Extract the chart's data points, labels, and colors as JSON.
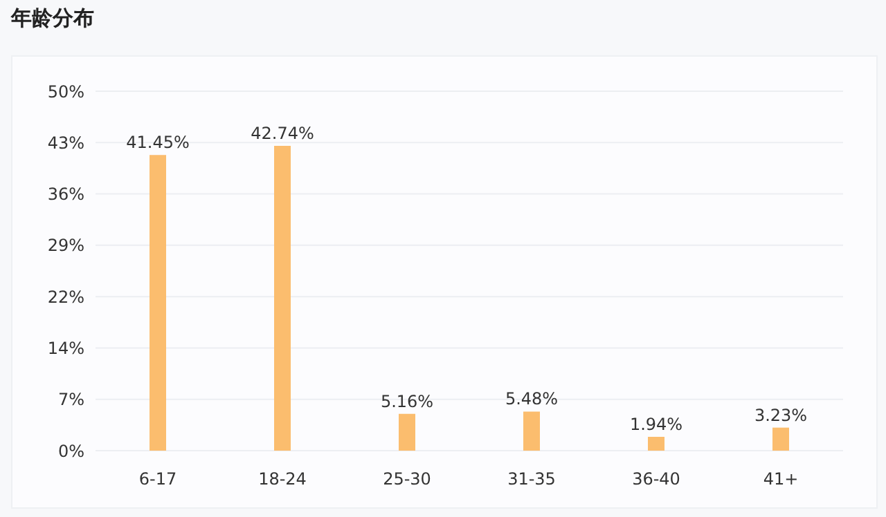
{
  "chart_data": {
    "type": "bar",
    "title": "年龄分布",
    "categories": [
      "6-17",
      "18-24",
      "25-30",
      "31-35",
      "36-40",
      "41+"
    ],
    "values": [
      41.45,
      42.74,
      5.16,
      5.48,
      1.94,
      3.23
    ],
    "value_labels": [
      "41.45%",
      "42.74%",
      "5.16%",
      "5.48%",
      "1.94%",
      "3.23%"
    ],
    "color": "#fbbd6e",
    "ylim": [
      0,
      50.4
    ],
    "yticks": [
      {
        "value": 0,
        "label": "0%"
      },
      {
        "value": 7.2,
        "label": "7%"
      },
      {
        "value": 14.4,
        "label": "14%"
      },
      {
        "value": 21.6,
        "label": "22%"
      },
      {
        "value": 28.8,
        "label": "29%"
      },
      {
        "value": 36,
        "label": "36%"
      },
      {
        "value": 43.2,
        "label": "43%"
      },
      {
        "value": 50.4,
        "label": "50%"
      }
    ],
    "grid": "y",
    "legend": false
  }
}
